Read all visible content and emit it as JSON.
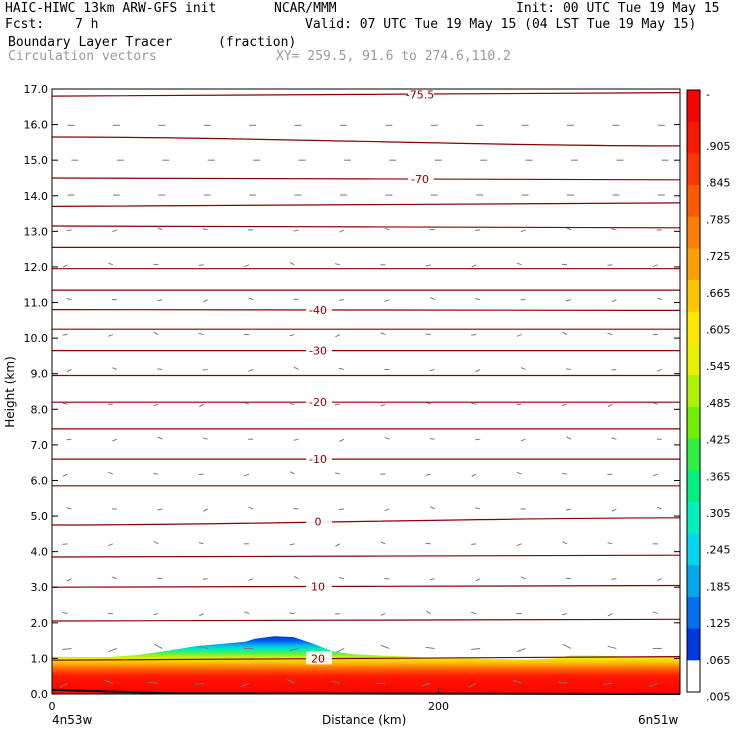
{
  "header": {
    "title": "HAIC-HIWC 13km ARW-GFS init",
    "org": "NCAR/MMM",
    "init": "Init: 00 UTC Tue 19 May 15",
    "fcst_label": "Fcst:",
    "fcst_value": "7 h",
    "valid": "Valid: 07 UTC Tue 19 May 15 (04 LST Tue 19 May 15)",
    "field": "Boundary Layer Tracer",
    "units": "(fraction)",
    "overlay": "Circulation vectors",
    "xy": "XY= 259.5, 91.6 to 274.6,110.2"
  },
  "chart_data": {
    "type": "heatmap",
    "xlabel": "Distance (km)",
    "ylabel": "Height (km)",
    "xlim": [
      0,
      325
    ],
    "ylim": [
      0,
      17
    ],
    "x_ticks": [
      "0",
      "200"
    ],
    "x_tick_values": [
      0,
      200
    ],
    "x_end_labels": [
      "4n53w",
      "6n51w"
    ],
    "y_ticks": [
      "0.0",
      "1.0",
      "2.0",
      "3.0",
      "4.0",
      "5.0",
      "6.0",
      "7.0",
      "8.0",
      "9.0",
      "10.0",
      "11.0",
      "12.0",
      "13.0",
      "14.0",
      "15.0",
      "16.0",
      "17.0"
    ],
    "colorbar": {
      "labels": [
        "-",
        ".905",
        ".845",
        ".785",
        ".725",
        ".665",
        ".605",
        ".545",
        ".485",
        ".425",
        ".365",
        ".305",
        ".245",
        ".185",
        ".125",
        ".065",
        ".005"
      ],
      "colors": [
        "#ff0000",
        "#ff1800",
        "#ff3600",
        "#ff5a00",
        "#ff7e00",
        "#ffa000",
        "#ffc400",
        "#ffe800",
        "#e8f000",
        "#b0f000",
        "#70f000",
        "#30f040",
        "#00f080",
        "#00f0c0",
        "#00d8f0",
        "#00a8f0",
        "#0070f0",
        "#0038e0",
        "#ffffff"
      ]
    },
    "tracer_top_km": [
      [
        0,
        1.05
      ],
      [
        15,
        1.04
      ],
      [
        30,
        1.04
      ],
      [
        45,
        1.1
      ],
      [
        60,
        1.22
      ],
      [
        75,
        1.35
      ],
      [
        90,
        1.42
      ],
      [
        100,
        1.47
      ],
      [
        105,
        1.55
      ],
      [
        115,
        1.62
      ],
      [
        125,
        1.6
      ],
      [
        135,
        1.42
      ],
      [
        145,
        1.2
      ],
      [
        155,
        1.12
      ],
      [
        170,
        1.08
      ],
      [
        185,
        1.05
      ],
      [
        200,
        1.0
      ],
      [
        215,
        1.0
      ],
      [
        230,
        0.98
      ],
      [
        245,
        0.96
      ],
      [
        260,
        1.0
      ],
      [
        268,
        1.08
      ],
      [
        280,
        1.08
      ],
      [
        300,
        1.05
      ],
      [
        315,
        1.05
      ],
      [
        325,
        1.08
      ]
    ],
    "temperature_contours": [
      {
        "y0": 16.8,
        "y1": 16.9,
        "label": "-75.5"
      },
      {
        "y0": 15.65,
        "y1": 15.4,
        "label": ""
      },
      {
        "y0": 14.5,
        "y1": 14.45,
        "label": "-70"
      },
      {
        "y0": 13.7,
        "y1": 13.8,
        "label": ""
      },
      {
        "y0": 13.15,
        "y1": 13.1,
        "label": ""
      },
      {
        "y0": 12.55,
        "y1": 12.55,
        "label": ""
      },
      {
        "y0": 11.95,
        "y1": 11.95,
        "label": ""
      },
      {
        "y0": 11.35,
        "y1": 11.35,
        "label": ""
      },
      {
        "y0": 10.8,
        "y1": 10.78,
        "label": "-40"
      },
      {
        "y0": 10.25,
        "y1": 10.25,
        "label": ""
      },
      {
        "y0": 9.65,
        "y1": 9.65,
        "label": "-30"
      },
      {
        "y0": 8.95,
        "y1": 8.95,
        "label": ""
      },
      {
        "y0": 8.2,
        "y1": 8.2,
        "label": "-20"
      },
      {
        "y0": 7.45,
        "y1": 7.45,
        "label": ""
      },
      {
        "y0": 6.6,
        "y1": 6.6,
        "label": "-10"
      },
      {
        "y0": 5.85,
        "y1": 5.85,
        "label": ""
      },
      {
        "y0": 4.75,
        "y1": 4.95,
        "label": "0"
      },
      {
        "y0": 3.85,
        "y1": 3.9,
        "label": ""
      },
      {
        "y0": 3.0,
        "y1": 3.05,
        "label": "10"
      },
      {
        "y0": 2.05,
        "y1": 2.1,
        "label": ""
      },
      {
        "y0": 0.95,
        "y1": 1.05,
        "label": "20"
      }
    ]
  }
}
